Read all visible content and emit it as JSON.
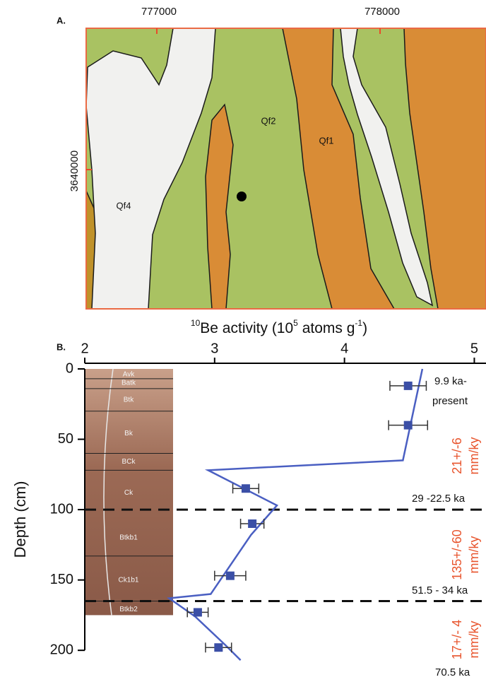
{
  "map": {
    "panel_label": "A.",
    "xticks": [
      777000,
      778000
    ],
    "yticks": [
      3640000
    ],
    "unit_labels": [
      "Qf4",
      "Qf2",
      "Qf1"
    ]
  },
  "chart_data": {
    "type": "scatter",
    "panel_label": "B.",
    "x_label_parts": [
      "10",
      "Be activity (10",
      "5",
      " atoms g",
      "-1",
      ")"
    ],
    "y_label": "Depth (cm)",
    "xlim": [
      2,
      5.09
    ],
    "xticks": [
      2,
      3,
      4,
      5
    ],
    "ylim": [
      0,
      220
    ],
    "yticks": [
      0,
      50,
      100,
      150,
      200
    ],
    "y_inverted": true,
    "points": {
      "color": "#3b4fa6",
      "x": [
        4.49,
        4.49,
        3.24,
        3.29,
        3.12,
        2.87,
        3.03
      ],
      "y": [
        12,
        40,
        85,
        110,
        147,
        173,
        198
      ],
      "xerr": [
        0.14,
        0.15,
        0.1,
        0.09,
        0.12,
        0.08,
        0.1
      ]
    },
    "curve": {
      "color": "#4a5fc2",
      "x": [
        4.6,
        4.45,
        2.95,
        3.48,
        3.28,
        2.97,
        2.65,
        2.85,
        3.08,
        3.2
      ],
      "y": [
        0,
        65,
        72,
        97,
        118,
        160,
        163,
        176,
        196,
        207
      ]
    },
    "dashed_depths": [
      100,
      165
    ],
    "age_labels": [
      "9.9 ka-",
      "present",
      "29 -22.5 ka",
      "51.5 - 34 ka",
      "70.5 ka"
    ],
    "rate_labels": [
      [
        "21+/-6",
        "mm/ky"
      ],
      [
        "135+/-60",
        "mm/ky"
      ],
      [
        "17+/- 4",
        "mm/ky"
      ]
    ],
    "horizons": [
      "Avk",
      "Batk",
      "Btk",
      "Bk",
      "BCk",
      "Ck",
      "Btkb1",
      "Ck1b1",
      "Btkb2"
    ]
  }
}
